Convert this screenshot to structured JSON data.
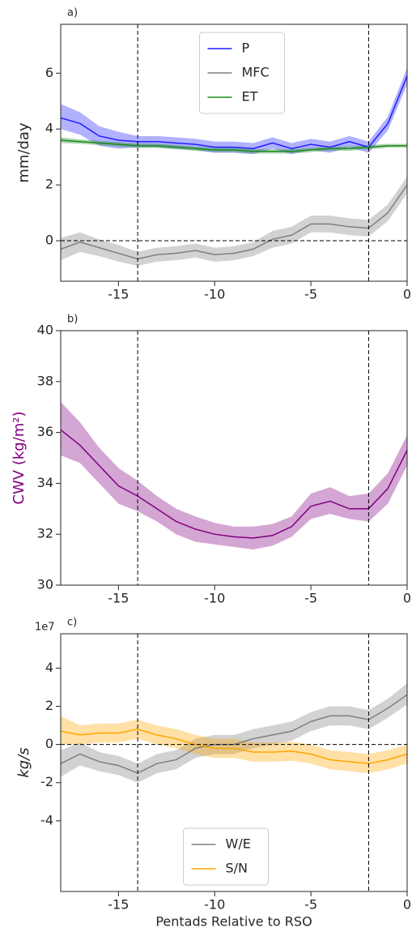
{
  "chart_data": [
    {
      "type": "line",
      "label": "a)",
      "ylabel": "mm/day",
      "x": [
        -18,
        -17,
        -16,
        -15,
        -14,
        -13,
        -12,
        -11,
        -10,
        -9,
        -8,
        -7,
        -6,
        -5,
        -4,
        -3,
        -2,
        -1,
        0
      ],
      "xlim": [
        -18,
        0
      ],
      "xticks": [
        -15,
        -10,
        -5,
        0
      ],
      "ylim": [
        -1.45,
        7.75
      ],
      "yticks": [
        0,
        2,
        4,
        6
      ],
      "vlines": [
        -14,
        -2
      ],
      "hlines": [
        0
      ],
      "legend": "upper center",
      "series": [
        {
          "name": "P",
          "color": "#1f1fff",
          "values": [
            4.4,
            4.2,
            3.75,
            3.6,
            3.55,
            3.55,
            3.5,
            3.45,
            3.35,
            3.35,
            3.3,
            3.5,
            3.3,
            3.45,
            3.35,
            3.55,
            3.35,
            4.2,
            5.9
          ],
          "lower": [
            4.0,
            3.8,
            3.4,
            3.3,
            3.35,
            3.35,
            3.3,
            3.25,
            3.15,
            3.15,
            3.1,
            3.3,
            3.1,
            3.25,
            3.15,
            3.35,
            3.15,
            3.95,
            5.6
          ],
          "upper": [
            4.9,
            4.6,
            4.1,
            3.9,
            3.75,
            3.75,
            3.7,
            3.65,
            3.55,
            3.55,
            3.5,
            3.7,
            3.5,
            3.65,
            3.55,
            3.75,
            3.55,
            4.45,
            6.2
          ]
        },
        {
          "name": "MFC",
          "color": "#7f7f7f",
          "values": [
            -0.3,
            -0.05,
            -0.25,
            -0.45,
            -0.65,
            -0.5,
            -0.45,
            -0.35,
            -0.5,
            -0.45,
            -0.3,
            0.05,
            0.2,
            0.6,
            0.6,
            0.5,
            0.45,
            1.0,
            2.0
          ],
          "lower": [
            -0.7,
            -0.4,
            -0.55,
            -0.75,
            -0.9,
            -0.75,
            -0.7,
            -0.6,
            -0.75,
            -0.7,
            -0.55,
            -0.25,
            -0.1,
            0.3,
            0.3,
            0.2,
            0.15,
            0.7,
            1.7
          ],
          "upper": [
            0.1,
            0.3,
            0.05,
            -0.15,
            -0.4,
            -0.25,
            -0.2,
            -0.1,
            -0.25,
            -0.2,
            -0.05,
            0.35,
            0.5,
            0.9,
            0.9,
            0.8,
            0.75,
            1.3,
            2.3
          ]
        },
        {
          "name": "ET",
          "color": "#1a8a1a",
          "values": [
            3.6,
            3.55,
            3.5,
            3.45,
            3.4,
            3.4,
            3.35,
            3.3,
            3.25,
            3.25,
            3.2,
            3.2,
            3.2,
            3.25,
            3.3,
            3.3,
            3.35,
            3.4,
            3.4
          ],
          "lower": [
            3.5,
            3.47,
            3.42,
            3.37,
            3.32,
            3.32,
            3.27,
            3.22,
            3.17,
            3.17,
            3.12,
            3.12,
            3.12,
            3.17,
            3.22,
            3.22,
            3.27,
            3.33,
            3.33
          ],
          "upper": [
            3.7,
            3.63,
            3.58,
            3.53,
            3.48,
            3.48,
            3.43,
            3.38,
            3.33,
            3.33,
            3.28,
            3.28,
            3.28,
            3.33,
            3.38,
            3.38,
            3.43,
            3.47,
            3.47
          ]
        }
      ]
    },
    {
      "type": "line",
      "label": "b)",
      "ylabel": "CWV (kg/m²)",
      "ylabel_color": "#800080",
      "x": [
        -18,
        -17,
        -16,
        -15,
        -14,
        -13,
        -12,
        -11,
        -10,
        -9,
        -8,
        -7,
        -6,
        -5,
        -4,
        -3,
        -2,
        -1,
        0
      ],
      "xlim": [
        -18,
        0
      ],
      "xticks": [
        -15,
        -10,
        -5,
        0
      ],
      "ylim": [
        30,
        40
      ],
      "yticks": [
        30,
        32,
        34,
        36,
        38,
        40
      ],
      "vlines": [
        -14,
        -2
      ],
      "hlines": [],
      "series": [
        {
          "color": "#800080",
          "values": [
            36.1,
            35.5,
            34.7,
            33.9,
            33.5,
            33.0,
            32.5,
            32.2,
            32.0,
            31.9,
            31.85,
            31.95,
            32.3,
            33.1,
            33.3,
            33.0,
            33.0,
            33.8,
            35.3
          ],
          "lower": [
            35.1,
            34.8,
            34.0,
            33.2,
            32.9,
            32.5,
            32.0,
            31.7,
            31.6,
            31.5,
            31.4,
            31.55,
            31.9,
            32.6,
            32.8,
            32.6,
            32.5,
            33.2,
            34.7
          ],
          "upper": [
            37.2,
            36.4,
            35.4,
            34.6,
            34.1,
            33.5,
            33.0,
            32.7,
            32.45,
            32.3,
            32.3,
            32.4,
            32.7,
            33.6,
            33.85,
            33.5,
            33.6,
            34.4,
            35.9
          ]
        }
      ]
    },
    {
      "type": "line",
      "label": "c)",
      "offset_text": "1e7",
      "ylabel": "kg/s",
      "xlabel": "Pentads Relative to RSO",
      "x": [
        -18,
        -17,
        -16,
        -15,
        -14,
        -13,
        -12,
        -11,
        -10,
        -9,
        -8,
        -7,
        -6,
        -5,
        -4,
        -3,
        -2,
        -1,
        0
      ],
      "xlim": [
        -18,
        0
      ],
      "xticks": [
        -15,
        -10,
        -5,
        0
      ],
      "ylim": [
        -7.7,
        5.8
      ],
      "yticks": [
        -4,
        -2,
        0,
        2,
        4
      ],
      "vlines": [
        -14,
        -2
      ],
      "hlines": [
        0
      ],
      "legend": "lower center",
      "series": [
        {
          "name": "W/E",
          "color": "#7f7f7f",
          "values": [
            -1.0,
            -0.5,
            -0.9,
            -1.1,
            -1.5,
            -1.0,
            -0.8,
            -0.2,
            0.0,
            0.0,
            0.3,
            0.5,
            0.7,
            1.2,
            1.5,
            1.5,
            1.3,
            1.9,
            2.6
          ],
          "lower": [
            -1.7,
            -1.1,
            -1.4,
            -1.6,
            -2.0,
            -1.5,
            -1.3,
            -0.7,
            -0.5,
            -0.5,
            -0.2,
            0.0,
            0.2,
            0.7,
            1.0,
            1.0,
            0.8,
            1.4,
            2.1
          ],
          "upper": [
            -0.3,
            0.1,
            -0.4,
            -0.6,
            -1.0,
            -0.5,
            -0.3,
            0.3,
            0.5,
            0.5,
            0.8,
            1.0,
            1.2,
            1.7,
            2.0,
            2.0,
            1.8,
            2.4,
            3.2
          ]
        },
        {
          "name": "S/N",
          "color": "#ffa500",
          "values": [
            0.7,
            0.5,
            0.6,
            0.6,
            0.8,
            0.5,
            0.3,
            0.0,
            -0.2,
            -0.2,
            -0.4,
            -0.4,
            -0.35,
            -0.5,
            -0.8,
            -0.9,
            -1.0,
            -0.8,
            -0.5
          ],
          "lower": [
            0.0,
            0.0,
            0.1,
            0.1,
            0.3,
            0.0,
            -0.2,
            -0.5,
            -0.7,
            -0.7,
            -0.9,
            -0.9,
            -0.85,
            -1.0,
            -1.3,
            -1.4,
            -1.5,
            -1.3,
            -1.0
          ],
          "upper": [
            1.5,
            1.0,
            1.1,
            1.1,
            1.3,
            1.0,
            0.8,
            0.5,
            0.3,
            0.3,
            0.1,
            0.1,
            0.15,
            0.0,
            -0.3,
            -0.4,
            -0.5,
            -0.3,
            0.0
          ]
        }
      ]
    }
  ]
}
